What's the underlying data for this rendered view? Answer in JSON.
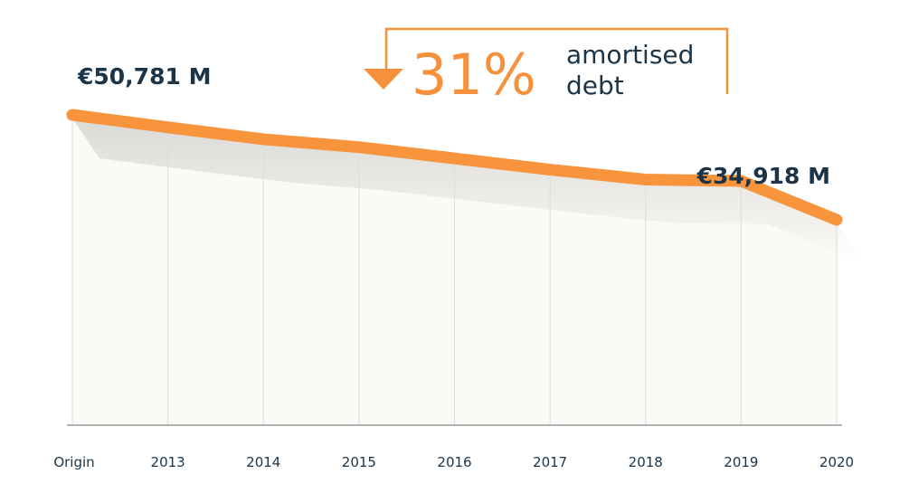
{
  "chart_data": {
    "type": "area",
    "categories": [
      "Origin",
      "2013",
      "2014",
      "2015",
      "2016",
      "2017",
      "2018",
      "2019",
      "2020"
    ],
    "values": [
      50781,
      48900,
      47100,
      45900,
      44200,
      42500,
      41000,
      40800,
      34918
    ],
    "unit": "€ M",
    "ylim": [
      0,
      60000
    ],
    "grid": "vertical",
    "start_label": "€50,781 M",
    "end_label": "€34,918 M"
  },
  "callout": {
    "percent": "31%",
    "line1": "amortised",
    "line2": "debt",
    "arrow_icon": "down-triangle-icon"
  },
  "colors": {
    "line": "#f7943c",
    "text": "#1b3447",
    "accent": "#f7903a",
    "grid": "#dcdcdc",
    "area": "#fbfaf6"
  }
}
